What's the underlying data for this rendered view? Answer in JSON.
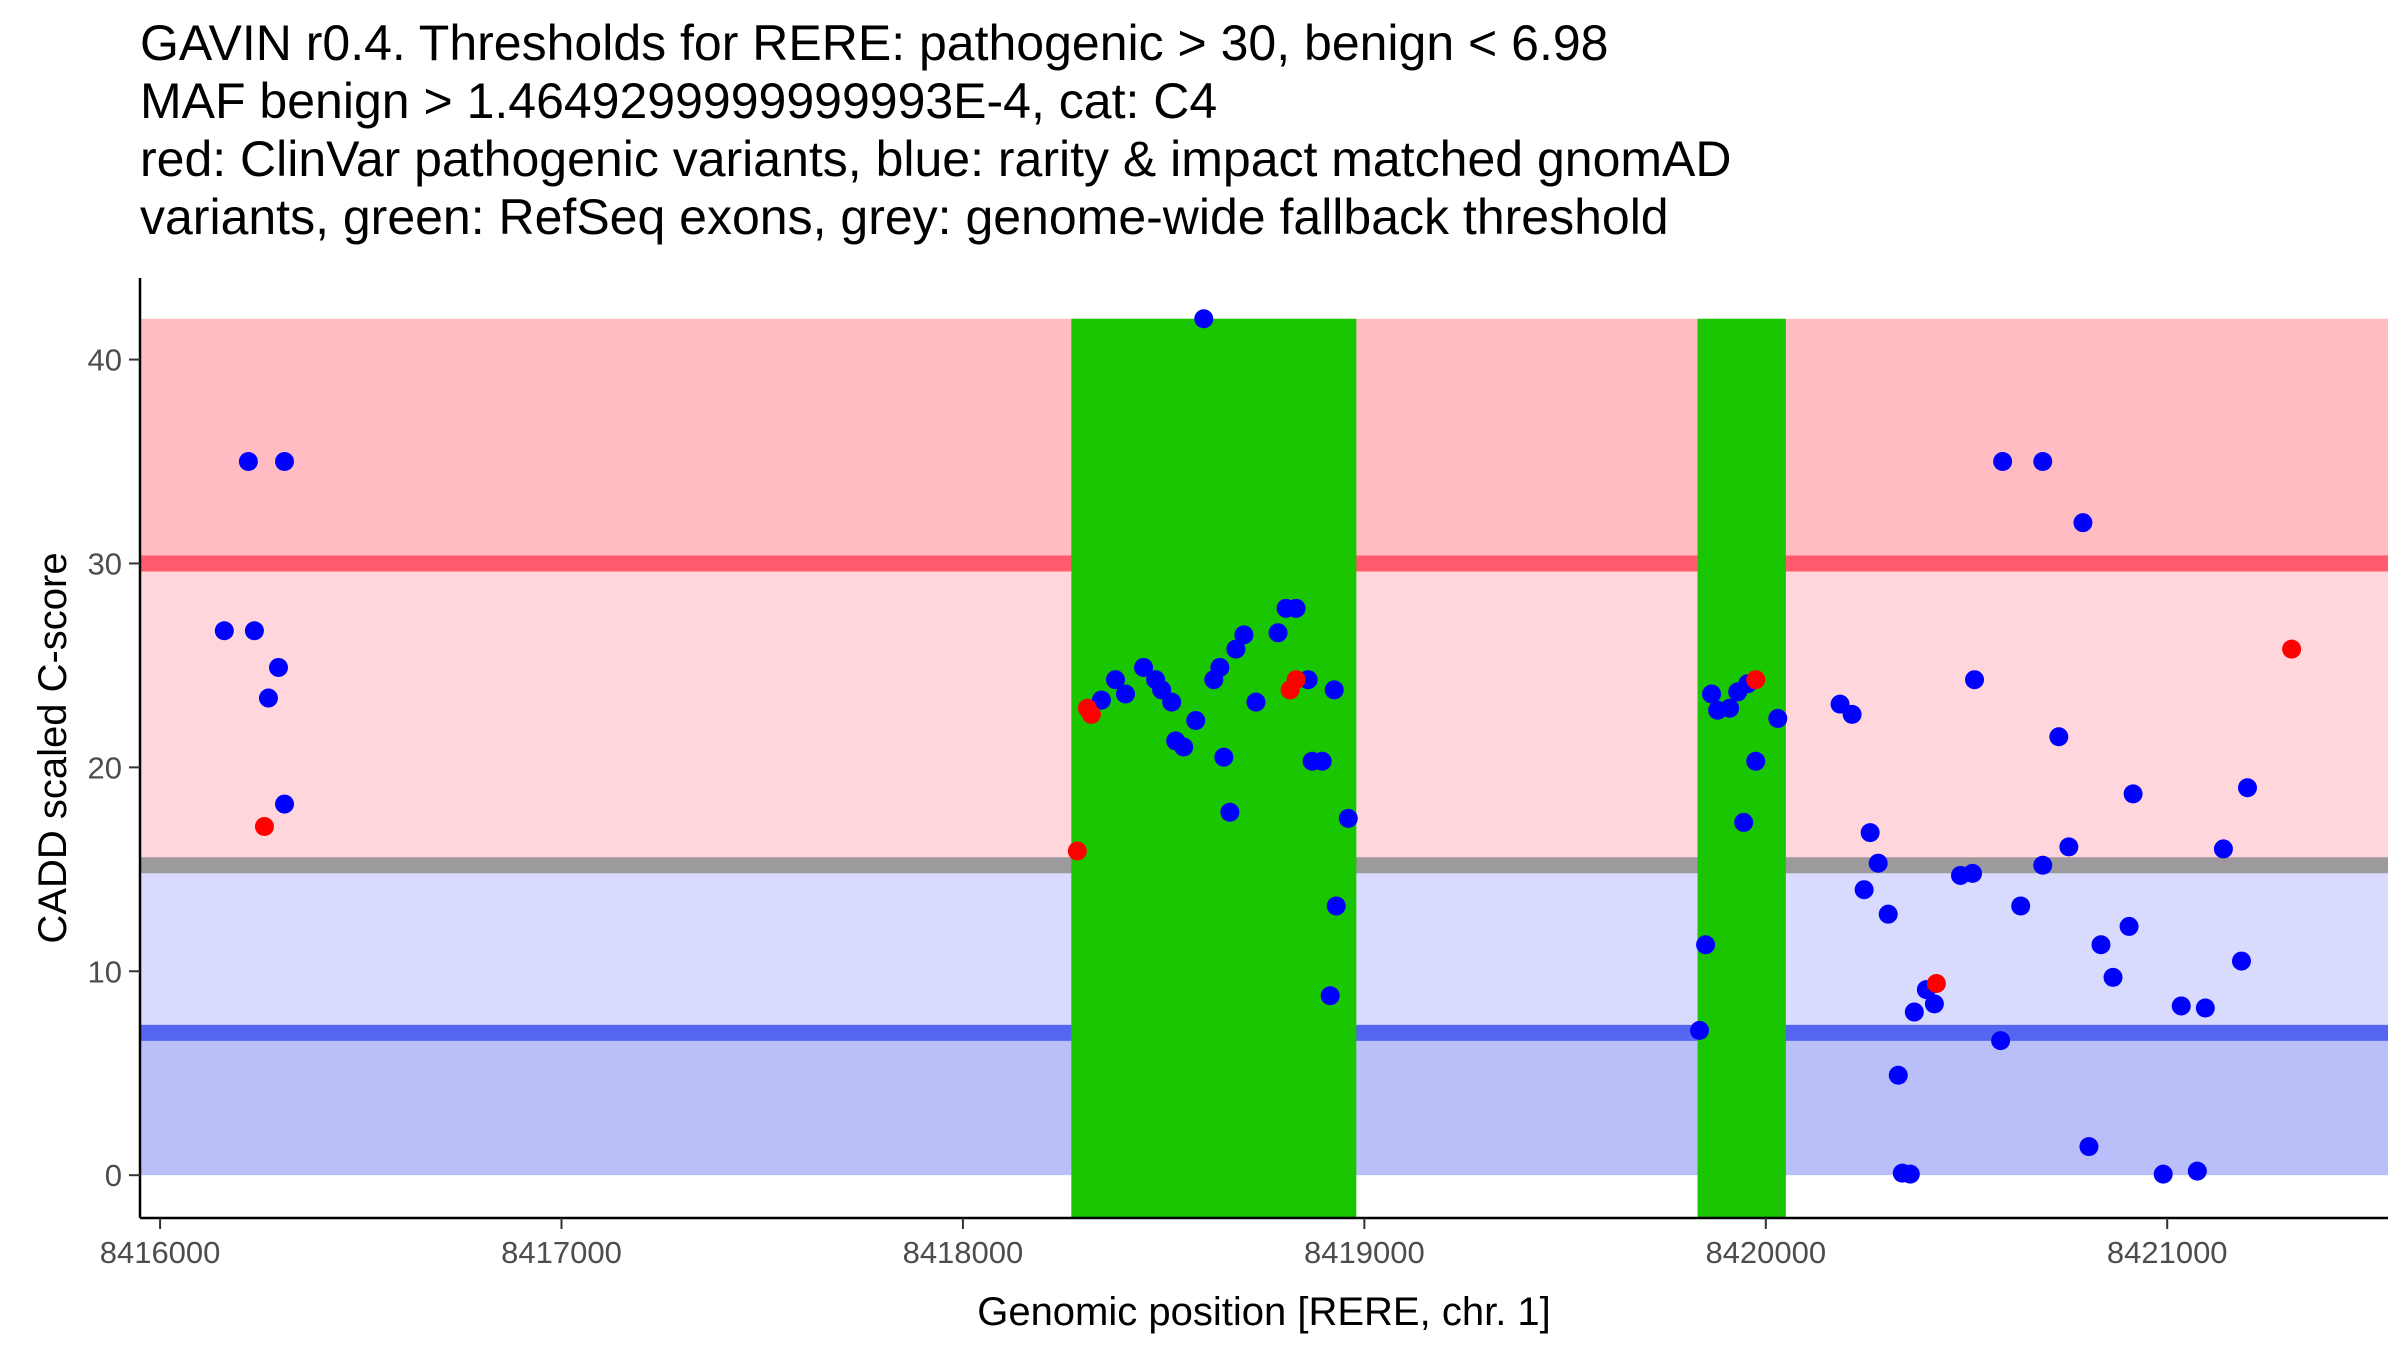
{
  "chart_data": {
    "type": "scatter",
    "title_lines": [
      "GAVIN r0.4. Thresholds for RERE: pathogenic > 30, benign < 6.98",
      "MAF benign > 1.4649299999999993E-4, cat: C4",
      "red: ClinVar pathogenic variants, blue: rarity & impact matched gnomAD",
      "variants, green: RefSeq exons, grey: genome-wide fallback threshold"
    ],
    "xlabel": "Genomic position [RERE, chr. 1]",
    "ylabel": "CADD scaled C-score",
    "xlim": [
      8415950,
      8421550
    ],
    "ylim": [
      -2.1,
      44
    ],
    "x_ticks": [
      8416000,
      8417000,
      8418000,
      8419000,
      8420000,
      8421000
    ],
    "x_tick_labels": [
      "8416000",
      "8417000",
      "8418000",
      "8419000",
      "8420000",
      "8421000"
    ],
    "y_ticks": [
      0,
      10,
      20,
      30,
      40
    ],
    "y_tick_labels": [
      "0",
      "10",
      "20",
      "30",
      "40"
    ],
    "bands": [
      {
        "name": "pathogenic-zone",
        "y0": 30,
        "y1": 42,
        "color": "#FFBCC2"
      },
      {
        "name": "intermediate-high-zone",
        "y0": 15.2,
        "y1": 30,
        "color": "#FFD6DC"
      },
      {
        "name": "intermediate-low-zone",
        "y0": 6.98,
        "y1": 15.2,
        "color": "#D8DBFD"
      },
      {
        "name": "benign-zone",
        "y0": 0,
        "y1": 6.98,
        "color": "#BABFFA"
      }
    ],
    "threshold_lines": [
      {
        "name": "pathogenic-threshold",
        "y": 30,
        "color": "#FF5A6E"
      },
      {
        "name": "fallback-threshold",
        "y": 15.2,
        "color": "#9C9A9C"
      },
      {
        "name": "benign-threshold",
        "y": 6.98,
        "color": "#5566F0"
      }
    ],
    "exons": [
      {
        "start": 8418270,
        "end": 8418980,
        "color": "#19C600"
      },
      {
        "start": 8419830,
        "end": 8420050,
        "color": "#19C600"
      }
    ],
    "series": [
      {
        "name": "gnomAD variants",
        "color": "#0000FF",
        "points": [
          [
            8416160,
            26.7
          ],
          [
            8416220,
            35
          ],
          [
            8416235,
            26.7
          ],
          [
            8416270,
            23.4
          ],
          [
            8416295,
            24.9
          ],
          [
            8416310,
            35
          ],
          [
            8416310,
            18.2
          ],
          [
            8418345,
            23.3
          ],
          [
            8418380,
            24.3
          ],
          [
            8418405,
            23.6
          ],
          [
            8418450,
            24.9
          ],
          [
            8418480,
            24.3
          ],
          [
            8418495,
            23.8
          ],
          [
            8418520,
            23.2
          ],
          [
            8418530,
            21.3
          ],
          [
            8418550,
            21
          ],
          [
            8418580,
            22.3
          ],
          [
            8418600,
            42
          ],
          [
            8418625,
            24.3
          ],
          [
            8418640,
            24.9
          ],
          [
            8418650,
            20.5
          ],
          [
            8418665,
            17.8
          ],
          [
            8418680,
            25.8
          ],
          [
            8418700,
            26.5
          ],
          [
            8418730,
            23.2
          ],
          [
            8418785,
            26.6
          ],
          [
            8418805,
            27.8
          ],
          [
            8418830,
            27.8
          ],
          [
            8418860,
            24.3
          ],
          [
            8418870,
            20.3
          ],
          [
            8418895,
            20.3
          ],
          [
            8418915,
            8.8
          ],
          [
            8418925,
            23.8
          ],
          [
            8418930,
            13.2
          ],
          [
            8418960,
            17.5
          ],
          [
            8419835,
            7.1
          ],
          [
            8419850,
            11.3
          ],
          [
            8419865,
            23.6
          ],
          [
            8419880,
            22.8
          ],
          [
            8419910,
            22.9
          ],
          [
            8419930,
            23.7
          ],
          [
            8419945,
            17.3
          ],
          [
            8419955,
            24.1
          ],
          [
            8419975,
            20.3
          ],
          [
            8420030,
            22.4
          ],
          [
            8420185,
            23.1
          ],
          [
            8420215,
            22.6
          ],
          [
            8420245,
            14
          ],
          [
            8420260,
            16.8
          ],
          [
            8420280,
            15.3
          ],
          [
            8420305,
            12.8
          ],
          [
            8420330,
            4.9
          ],
          [
            8420340,
            0.1
          ],
          [
            8420360,
            0.05
          ],
          [
            8420370,
            8
          ],
          [
            8420400,
            9.1
          ],
          [
            8420420,
            8.4
          ],
          [
            8420485,
            14.7
          ],
          [
            8420520,
            24.3
          ],
          [
            8420515,
            14.8
          ],
          [
            8420585,
            6.6
          ],
          [
            8420590,
            35
          ],
          [
            8420635,
            13.2
          ],
          [
            8420690,
            35
          ],
          [
            8420690,
            15.2
          ],
          [
            8420730,
            21.5
          ],
          [
            8420755,
            16.1
          ],
          [
            8420790,
            32
          ],
          [
            8420805,
            1.4
          ],
          [
            8420835,
            11.3
          ],
          [
            8420865,
            9.7
          ],
          [
            8420905,
            12.2
          ],
          [
            8420915,
            18.7
          ],
          [
            8420990,
            0.05
          ],
          [
            8421035,
            8.3
          ],
          [
            8421075,
            0.2
          ],
          [
            8421095,
            8.2
          ],
          [
            8421140,
            16
          ],
          [
            8421185,
            10.5
          ],
          [
            8421200,
            19
          ]
        ]
      },
      {
        "name": "ClinVar pathogenic variants",
        "color": "#FF0000",
        "points": [
          [
            8416260,
            17.1
          ],
          [
            8418285,
            15.9
          ],
          [
            8418310,
            22.9
          ],
          [
            8418320,
            22.6
          ],
          [
            8418815,
            23.8
          ],
          [
            8418830,
            24.3
          ],
          [
            8419975,
            24.3
          ],
          [
            8420425,
            9.4
          ],
          [
            8421310,
            25.8
          ]
        ]
      }
    ]
  }
}
